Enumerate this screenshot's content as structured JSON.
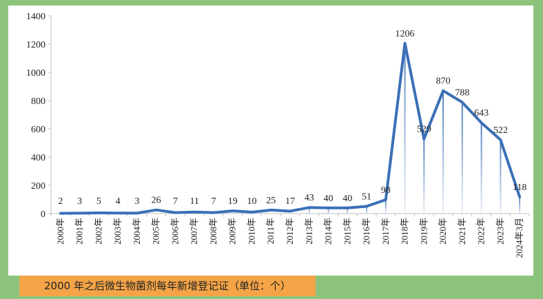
{
  "chart_data": {
    "type": "line",
    "categories": [
      "2000年",
      "2001年",
      "2002年",
      "2003年",
      "2004年",
      "2005年",
      "2006年",
      "2007年",
      "2008年",
      "2009年",
      "2010年",
      "2011年",
      "2012年",
      "2013年",
      "2014年",
      "2015年",
      "2016年",
      "2017年",
      "2018年",
      "2019年",
      "2020年",
      "2021年",
      "2022年",
      "2023年",
      "2024年3月"
    ],
    "series": [
      {
        "values": [
          2,
          3,
          5,
          4,
          3,
          26,
          7,
          11,
          7,
          19,
          10,
          25,
          17,
          43,
          40,
          40,
          51,
          98,
          1206,
          529,
          870,
          788,
          643,
          522,
          118
        ]
      }
    ],
    "ylim": [
      0,
      1400
    ],
    "yticks": [
      0,
      200,
      400,
      600,
      800,
      1000,
      1200,
      1400
    ],
    "color": "#3b6fb6",
    "grid": false,
    "legend": "none"
  },
  "caption": "2000 年之后微生物菌剂每年新增登记证（单位：个）"
}
